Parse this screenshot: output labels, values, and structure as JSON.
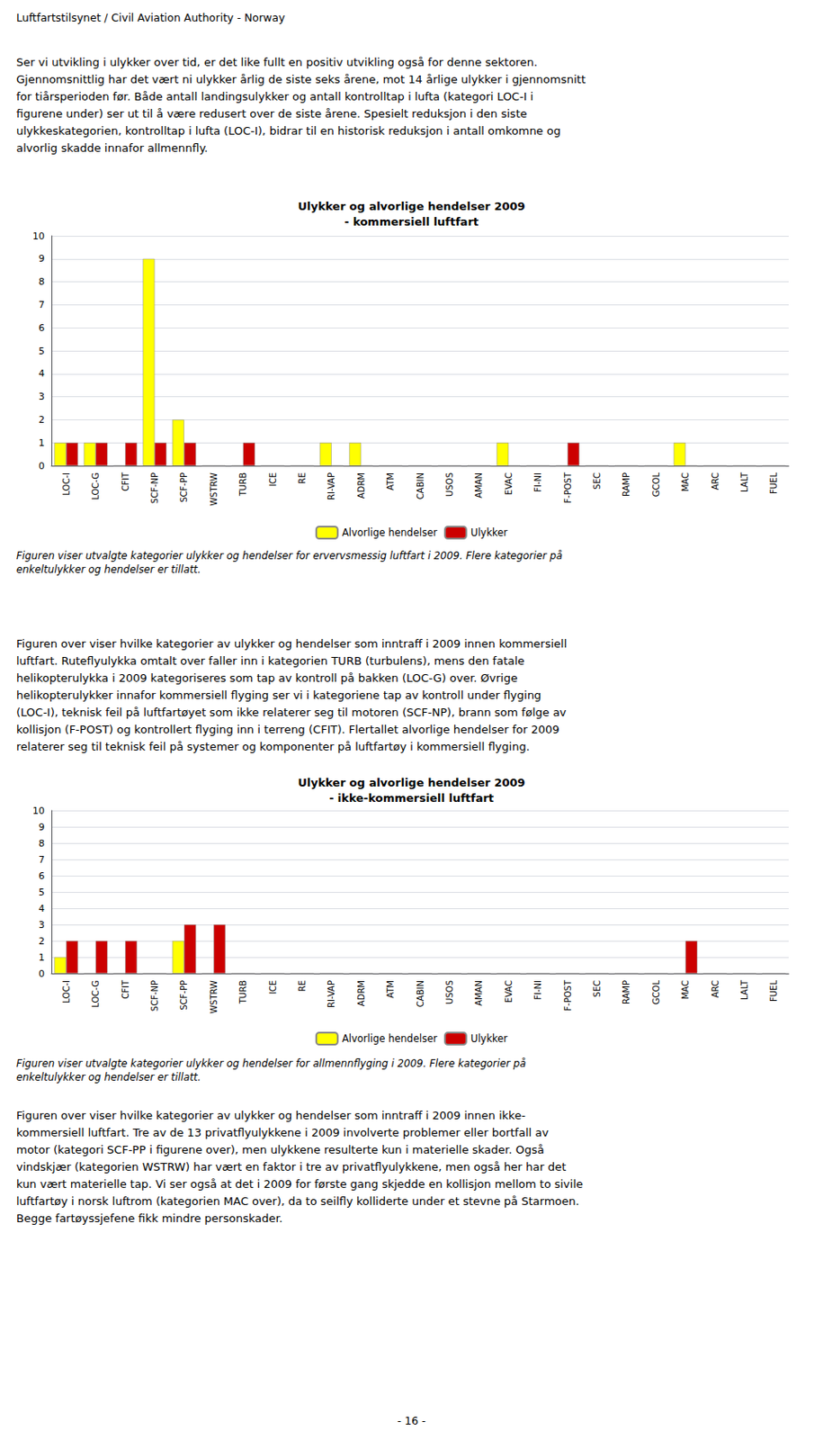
{
  "header": "Luftfartstilsynet / Civil Aviation Authority - Norway",
  "paragraphs": [
    "Ser vi utvikling i ulykker over tid, er det like fullt en positiv utvikling også for denne sektoren.\nGjennomsnittlig har det vært ni ulykker årlig de siste seks årene, mot 14 årlige ulykker i gjennomsnitt\nfor tiårsperioden før. Både antall landingsulykker og antall kontrolltap i lufta (kategori LOC-I i\nfigurene under) ser ut til å være redusert over de siste årene. Spesielt reduksjon i den siste\nulykkeskategorien, kontrolltap i lufta (LOC-I), bidrar til en historisk reduksjon i antall omkomne og\nalvorlig skadde innafor allmennfly.",
    "Figuren over viser hvilke kategorier av ulykker og hendelser som inntraff i 2009 innen kommersiell\nluftfart. Ruteflyulykka omtalt over faller inn i kategorien TURB (turbulens), mens den fatale\nhelikopterulykka i 2009 kategoriseres som tap av kontroll på bakken (LOC-G) over. Øvrige\nhelikopterulykker innafor kommersiell flyging ser vi i kategoriene tap av kontroll under flyging\n(LOC-I), teknisk feil på luftfartøyet som ikke relaterer seg til motoren (SCF-NP), brann som følge av\nkollisjon (F-POST) og kontrollert flyging inn i terreng (CFIT). Flertallet alvorlige hendelser for 2009\nrelaterer seg til teknisk feil på systemer og komponenter på luftfartøy i kommersiell flyging.",
    "Figuren over viser hvilke kategorier av ulykker og hendelser som inntraff i 2009 innen ikke-\nkommersiell luftfart. Tre av de 13 privatflyulykkene i 2009 involverte problemer eller bortfall av\nmotor (kategori SCF-PP i figurene over), men ulykkene resulterte kun i materielle skader. Også\nvindskjær (kategorien WSTRW) har vært en faktor i tre av privatflyulykkene, men også her har det\nkun vært materielle tap. Vi ser også at det i 2009 for første gang skjedde en kollisjon mellom to sivile\nluftfartøy i norsk luftrom (kategorien MAC over), da to seilfly kolliderte under et stevne på Starmoen.\nBegge fartøyssjefene fikk mindre personskader."
  ],
  "page_number": "- 16 -",
  "chart_data": [
    {
      "type": "bar",
      "title": "Ulykker og alvorlige hendelser 2009\n- kommersiell luftfart",
      "caption": "Figuren viser utvalgte kategorier ulykker og hendelser for ervervsmessig luftfart i 2009. Flere kategorier på\nenkeltulykker og hendelser er tillatt.",
      "categories": [
        "LOC-I",
        "LOC-G",
        "CFIT",
        "SCF-NP",
        "SCF-PP",
        "WSTRW",
        "TURB",
        "ICE",
        "RE",
        "RI-VAP",
        "ADRM",
        "ATM",
        "CABIN",
        "USOS",
        "AMAN",
        "EVAC",
        "FI-NI",
        "F-POST",
        "SEC",
        "RAMP",
        "GCOL",
        "MAC",
        "ARC",
        "LALT",
        "FUEL"
      ],
      "series": [
        {
          "name": "Alvorlige hendelser",
          "color": "#FFFF00",
          "values": [
            1,
            1,
            0,
            9,
            2,
            0,
            0,
            0,
            0,
            1,
            1,
            0,
            0,
            0,
            0,
            1,
            0,
            0,
            0,
            0,
            0,
            1,
            0,
            0,
            0
          ]
        },
        {
          "name": "Ulykker",
          "color": "#CC0000",
          "values": [
            1,
            1,
            1,
            1,
            1,
            0,
            1,
            0,
            0,
            0,
            0,
            0,
            0,
            0,
            0,
            0,
            0,
            1,
            0,
            0,
            0,
            0,
            0,
            0,
            0
          ]
        }
      ],
      "ylim": [
        0,
        10
      ],
      "yticks": [
        0,
        1,
        2,
        3,
        4,
        5,
        6,
        7,
        8,
        9,
        10
      ],
      "grid": true,
      "legend": "bottom"
    },
    {
      "type": "bar",
      "title": "Ulykker og alvorlige hendelser 2009\n- ikke-kommersiell luftfart",
      "caption": "Figuren viser utvalgte kategorier ulykker og hendelser for allmennflyging i 2009. Flere kategorier på\nenkeltulykker og hendelser er tillatt.",
      "categories": [
        "LOC-I",
        "LOC-G",
        "CFIT",
        "SCF-NP",
        "SCF-PP",
        "WSTRW",
        "TURB",
        "ICE",
        "RE",
        "RI-VAP",
        "ADRM",
        "ATM",
        "CABIN",
        "USOS",
        "AMAN",
        "EVAC",
        "FI-NI",
        "F-POST",
        "SEC",
        "RAMP",
        "GCOL",
        "MAC",
        "ARC",
        "LALT",
        "FUEL"
      ],
      "series": [
        {
          "name": "Alvorlige hendelser",
          "color": "#FFFF00",
          "values": [
            1,
            0,
            0,
            0,
            2,
            0,
            0,
            0,
            0,
            0,
            0,
            0,
            0,
            0,
            0,
            0,
            0,
            0,
            0,
            0,
            0,
            0,
            0,
            0,
            0
          ]
        },
        {
          "name": "Ulykker",
          "color": "#CC0000",
          "values": [
            2,
            2,
            2,
            0,
            3,
            3,
            0,
            0,
            0,
            0,
            0,
            0,
            0,
            0,
            0,
            0,
            0,
            0,
            0,
            0,
            0,
            2,
            0,
            0,
            0
          ]
        }
      ],
      "ylim": [
        0,
        10
      ],
      "yticks": [
        0,
        1,
        2,
        3,
        4,
        5,
        6,
        7,
        8,
        9,
        10
      ],
      "grid": true,
      "legend": "bottom"
    }
  ]
}
